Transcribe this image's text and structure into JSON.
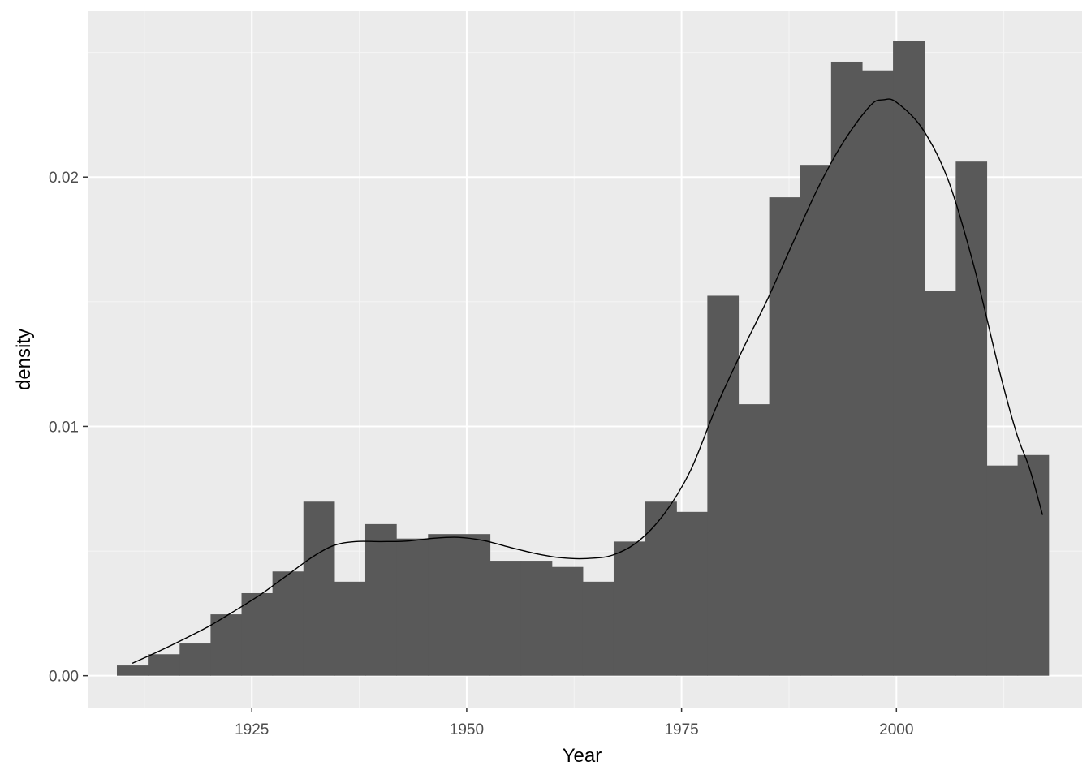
{
  "chart_data": {
    "type": "bar",
    "xlabel": "Year",
    "ylabel": "density",
    "xlim": [
      1905.9,
      2021.6
    ],
    "ylim": [
      -0.00128,
      0.02668
    ],
    "x_ticks": [
      {
        "value": 1925,
        "label": "1925"
      },
      {
        "value": 1950,
        "label": "1950"
      },
      {
        "value": 1975,
        "label": "1975"
      },
      {
        "value": 2000,
        "label": "2000"
      }
    ],
    "x_minor_ticks": [
      1912.5,
      1937.5,
      1962.5,
      1987.5,
      2012.5
    ],
    "y_ticks": [
      {
        "value": 0.0,
        "label": "0.00"
      },
      {
        "value": 0.01,
        "label": "0.01"
      },
      {
        "value": 0.02,
        "label": "0.02"
      }
    ],
    "y_minor_ticks": [
      0.005,
      0.015,
      0.025
    ],
    "grid": true,
    "histogram": {
      "fill_color": "#595959",
      "bins": [
        {
          "start": 1909.3,
          "end": 1912.9,
          "density": 0.00041
        },
        {
          "start": 1912.9,
          "end": 1916.6,
          "density": 0.00086
        },
        {
          "start": 1916.6,
          "end": 1920.2,
          "density": 0.00129
        },
        {
          "start": 1920.2,
          "end": 1923.8,
          "density": 0.00246
        },
        {
          "start": 1923.8,
          "end": 1927.4,
          "density": 0.00331
        },
        {
          "start": 1927.4,
          "end": 1931.0,
          "density": 0.00418
        },
        {
          "start": 1931.0,
          "end": 1934.6,
          "density": 0.00698
        },
        {
          "start": 1934.6,
          "end": 1938.2,
          "density": 0.00377
        },
        {
          "start": 1938.2,
          "end": 1941.8,
          "density": 0.00608
        },
        {
          "start": 1941.8,
          "end": 1945.5,
          "density": 0.0055
        },
        {
          "start": 1945.5,
          "end": 1949.1,
          "density": 0.00568
        },
        {
          "start": 1949.1,
          "end": 1952.7,
          "density": 0.00568
        },
        {
          "start": 1952.7,
          "end": 1956.3,
          "density": 0.00461
        },
        {
          "start": 1956.3,
          "end": 1959.9,
          "density": 0.00461
        },
        {
          "start": 1959.9,
          "end": 1963.5,
          "density": 0.00436
        },
        {
          "start": 1963.5,
          "end": 1967.1,
          "density": 0.00377
        },
        {
          "start": 1967.1,
          "end": 1970.7,
          "density": 0.00538
        },
        {
          "start": 1970.7,
          "end": 1974.4,
          "density": 0.00698
        },
        {
          "start": 1974.4,
          "end": 1978.0,
          "density": 0.00657
        },
        {
          "start": 1978.0,
          "end": 1981.6,
          "density": 0.01524
        },
        {
          "start": 1981.6,
          "end": 1985.2,
          "density": 0.01089
        },
        {
          "start": 1985.2,
          "end": 1988.8,
          "density": 0.01919
        },
        {
          "start": 1988.8,
          "end": 1992.4,
          "density": 0.02049
        },
        {
          "start": 1992.4,
          "end": 1996.0,
          "density": 0.02463
        },
        {
          "start": 1996.0,
          "end": 1999.6,
          "density": 0.02428
        },
        {
          "start": 1999.6,
          "end": 2003.3,
          "density": 0.02546
        },
        {
          "start": 2003.3,
          "end": 2006.9,
          "density": 0.01545
        },
        {
          "start": 2006.9,
          "end": 2010.5,
          "density": 0.02062
        },
        {
          "start": 2010.5,
          "end": 2014.1,
          "density": 0.00843
        },
        {
          "start": 2014.1,
          "end": 2017.7,
          "density": 0.00885
        }
      ]
    },
    "density_curve": {
      "color": "#000000",
      "points": [
        [
          1911.1,
          0.0005
        ],
        [
          1914.0,
          0.00095
        ],
        [
          1917.0,
          0.00145
        ],
        [
          1920.0,
          0.00198
        ],
        [
          1923.0,
          0.0026
        ],
        [
          1926.0,
          0.00325
        ],
        [
          1929.0,
          0.004
        ],
        [
          1932.0,
          0.00475
        ],
        [
          1934.5,
          0.00522
        ],
        [
          1937.0,
          0.00538
        ],
        [
          1940.0,
          0.00538
        ],
        [
          1943.0,
          0.0054
        ],
        [
          1946.0,
          0.00551
        ],
        [
          1949.0,
          0.00555
        ],
        [
          1952.0,
          0.00542
        ],
        [
          1955.0,
          0.00515
        ],
        [
          1958.0,
          0.0049
        ],
        [
          1961.0,
          0.00473
        ],
        [
          1964.0,
          0.0047
        ],
        [
          1967.0,
          0.00484
        ],
        [
          1970.0,
          0.0054
        ],
        [
          1973.0,
          0.0065
        ],
        [
          1976.0,
          0.0082
        ],
        [
          1979.0,
          0.01075
        ],
        [
          1982.0,
          0.013
        ],
        [
          1985.0,
          0.0151
        ],
        [
          1988.0,
          0.0174
        ],
        [
          1991.0,
          0.01965
        ],
        [
          1994.0,
          0.0215
        ],
        [
          1997.0,
          0.02288
        ],
        [
          1998.5,
          0.0231
        ],
        [
          2000.0,
          0.023
        ],
        [
          2003.0,
          0.02195
        ],
        [
          2006.0,
          0.0199
        ],
        [
          2009.0,
          0.01645
        ],
        [
          2012.0,
          0.0122
        ],
        [
          2014.0,
          0.0097
        ],
        [
          2015.5,
          0.0083
        ],
        [
          2017.0,
          0.00645
        ]
      ]
    }
  }
}
